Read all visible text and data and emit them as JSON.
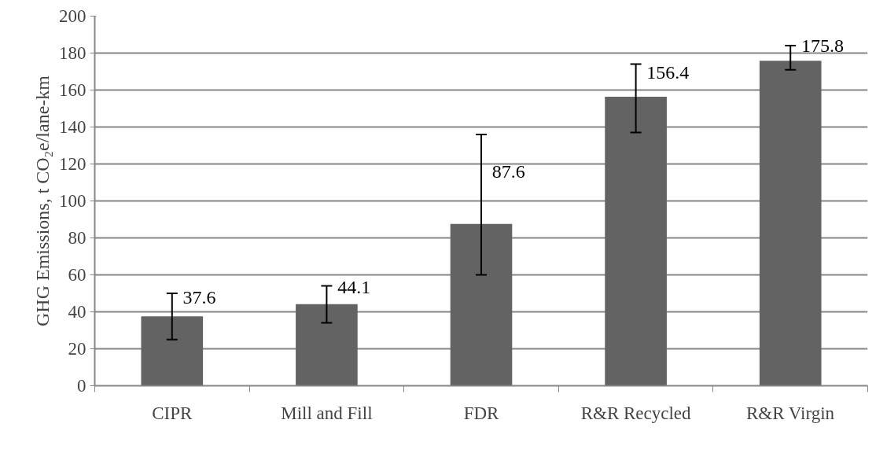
{
  "chart_data": {
    "type": "bar",
    "ylabel": "GHG Emissions, t CO₂e/lane-km",
    "categories": [
      "CIPR",
      "Mill and Fill",
      "FDR",
      "R&R Recycled",
      "R&R Virgin"
    ],
    "values": [
      37.6,
      44.1,
      87.6,
      156.4,
      175.8
    ],
    "color": "#636363",
    "errors": [
      [
        25,
        50
      ],
      [
        34,
        54
      ],
      [
        60,
        136
      ],
      [
        137,
        174
      ],
      [
        171,
        184
      ]
    ],
    "data_labels": true,
    "ylim": [
      0,
      200
    ],
    "yticks": [
      0,
      20,
      40,
      60,
      80,
      100,
      120,
      140,
      160,
      180,
      200
    ],
    "grid": "y"
  }
}
